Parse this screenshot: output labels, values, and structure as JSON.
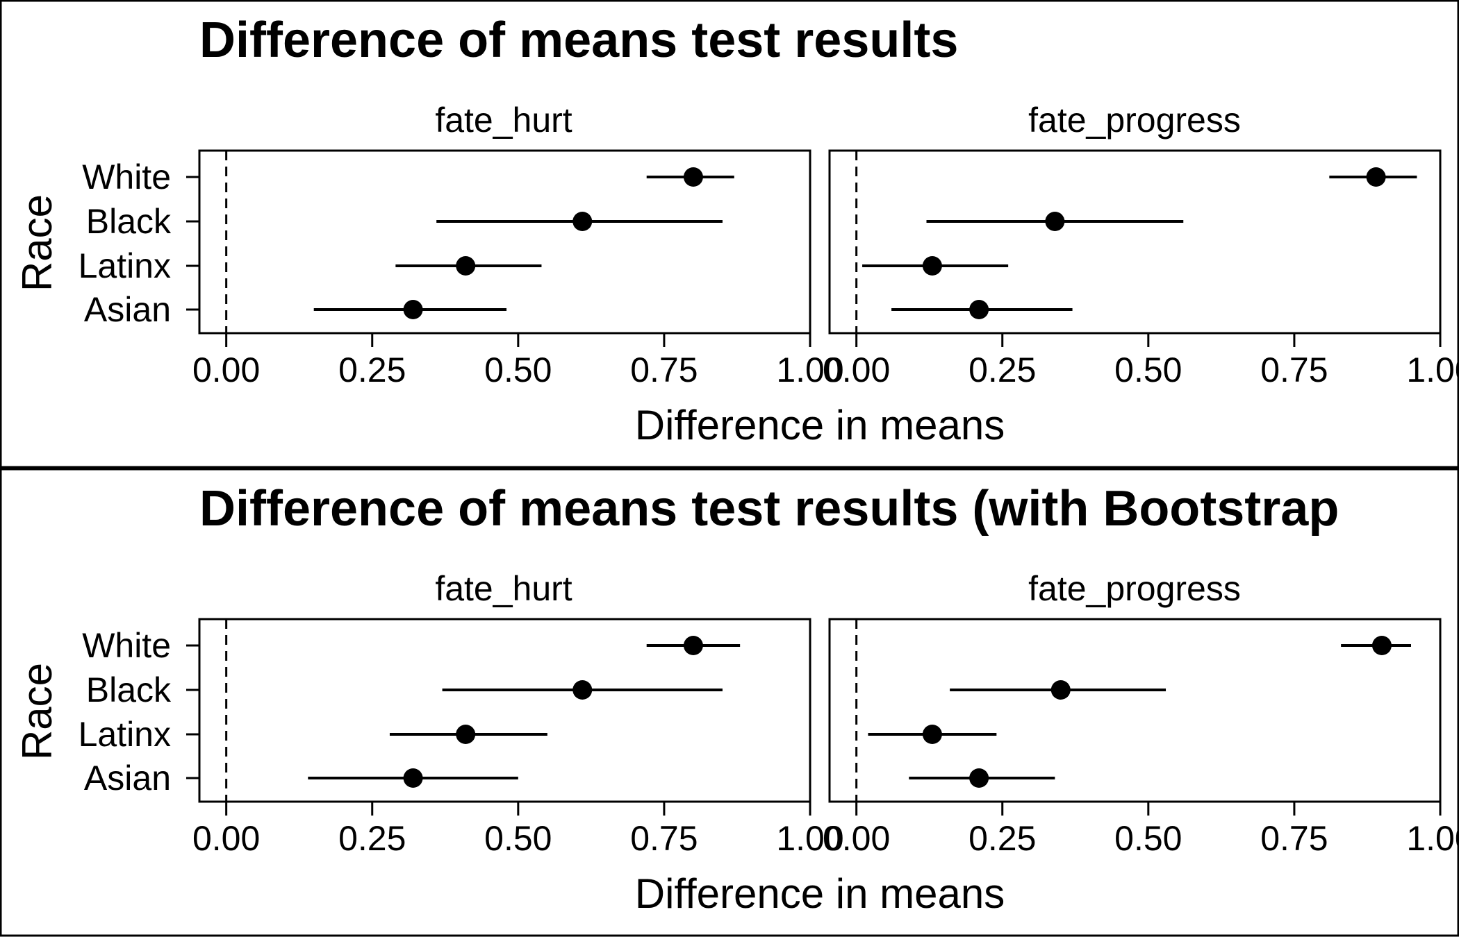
{
  "chart_data": [
    {
      "type": "forest",
      "title": "Difference of means test results",
      "xlabel": "Difference in means",
      "ylabel": "Race",
      "xlim": [
        -0.046,
        1.0
      ],
      "x_ticks": [
        "0.00",
        "0.25",
        "0.50",
        "0.75",
        "1.00"
      ],
      "reference_line": 0,
      "categories": [
        "White",
        "Black",
        "Latinx",
        "Asian"
      ],
      "panels": [
        {
          "name": "fate_hurt",
          "estimates": [
            0.8,
            0.61,
            0.41,
            0.32
          ],
          "lower": [
            0.72,
            0.36,
            0.29,
            0.15
          ],
          "upper": [
            0.87,
            0.85,
            0.54,
            0.48
          ]
        },
        {
          "name": "fate_progress",
          "estimates": [
            0.89,
            0.34,
            0.13,
            0.21
          ],
          "lower": [
            0.81,
            0.12,
            0.01,
            0.06
          ],
          "upper": [
            0.96,
            0.56,
            0.26,
            0.37
          ]
        }
      ]
    },
    {
      "type": "forest",
      "title": "Difference of means test results (with Bootstrap",
      "xlabel": "Difference in means",
      "ylabel": "Race",
      "xlim": [
        -0.046,
        1.0
      ],
      "x_ticks": [
        "0.00",
        "0.25",
        "0.50",
        "0.75",
        "1.00"
      ],
      "reference_line": 0,
      "categories": [
        "White",
        "Black",
        "Latinx",
        "Asian"
      ],
      "panels": [
        {
          "name": "fate_hurt",
          "estimates": [
            0.8,
            0.61,
            0.41,
            0.32
          ],
          "lower": [
            0.72,
            0.37,
            0.28,
            0.14
          ],
          "upper": [
            0.88,
            0.85,
            0.55,
            0.5
          ]
        },
        {
          "name": "fate_progress",
          "estimates": [
            0.9,
            0.35,
            0.13,
            0.21
          ],
          "lower": [
            0.83,
            0.16,
            0.02,
            0.09
          ],
          "upper": [
            0.95,
            0.53,
            0.24,
            0.34
          ]
        }
      ]
    }
  ]
}
